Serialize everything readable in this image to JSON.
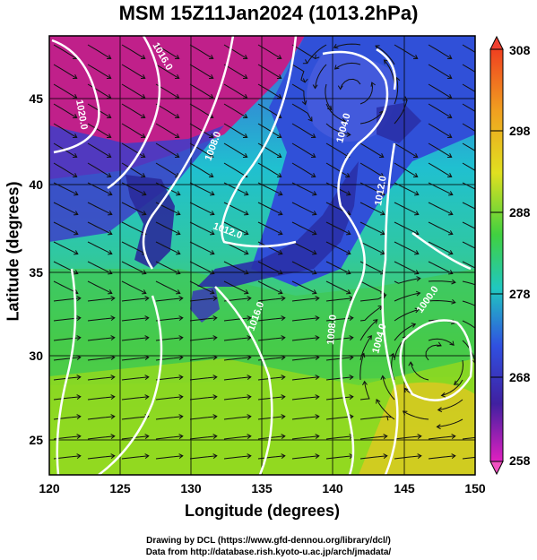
{
  "title": "MSM 15Z11Jan2024 (1013.2hPa)",
  "axes": {
    "xlabel": "Longitude (degrees)",
    "ylabel": "Latitude  (degrees)",
    "x_ticks": [
      "120",
      "125",
      "130",
      "135",
      "140",
      "145",
      "150"
    ],
    "y_ticks": [
      "25",
      "30",
      "35",
      "40",
      "45"
    ],
    "xlim": [
      120,
      150
    ],
    "ylim": [
      22.5,
      47.5
    ]
  },
  "colorbar": {
    "ticks": [
      "308",
      "298",
      "288",
      "278",
      "268",
      "258"
    ],
    "range": [
      258,
      308
    ],
    "colors": [
      "#c0208a",
      "#3040d0",
      "#20c8d8",
      "#30c060",
      "#c8e020",
      "#f06020"
    ]
  },
  "contour_labels": [
    "1016.0",
    "1020.0",
    "1008.0",
    "1004.0",
    "1012.0",
    "1012.0",
    "1016.0",
    "1008.0",
    "1004.0",
    "1000.0"
  ],
  "credits": {
    "line1": "Drawing by DCL (https://www.gfd-dennou.org/library/dcl/)",
    "line2": "Data from http://database.rish.kyoto-u.ac.jp/arch/jmadata/"
  }
}
